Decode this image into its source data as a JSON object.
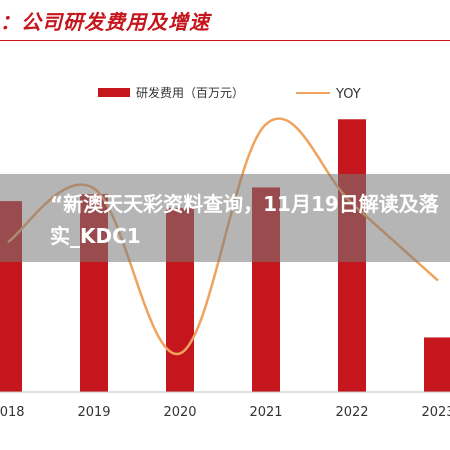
{
  "header": {
    "title": "：公司研发费用及增速"
  },
  "overlay": {
    "text": "“新澳天天彩资料查询，11月19日解读及落实_KDC1"
  },
  "colors": {
    "bar": "#c4161c",
    "line": "#f0a35e",
    "axis": "#bfbfbf",
    "accent": "#c4161c"
  },
  "chart_data": {
    "type": "bar",
    "categories": [
      "2018",
      "2019",
      "2020",
      "2021",
      "2022",
      "2023"
    ],
    "series": [
      {
        "name": "研发费用（百万元）",
        "type": "bar",
        "axis": "left",
        "values": [
          14,
          14.5,
          13.5,
          15,
          20,
          4
        ]
      },
      {
        "name": "YOY",
        "type": "line",
        "axis": "right",
        "values": [
          0.3,
          0.55,
          -0.22,
          0.85,
          0.48,
          0.12
        ]
      }
    ],
    "xlabel": "",
    "ylabel": "",
    "ylim": [
      0,
      22
    ],
    "y2lim": [
      -0.4,
      1.0
    ],
    "legend_position": "top",
    "grid": false
  }
}
